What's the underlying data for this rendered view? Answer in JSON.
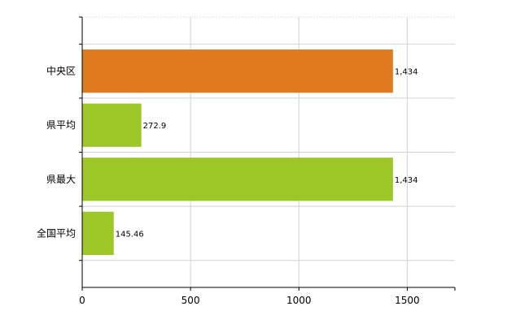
{
  "chart_data": {
    "type": "bar",
    "orientation": "horizontal",
    "categories": [
      "中央区",
      "県平均",
      "県最大",
      "全国平均"
    ],
    "values": [
      1434,
      272.9,
      1434,
      145.46
    ],
    "value_labels": [
      "1,434",
      "272.9",
      "1,434",
      "145.46"
    ],
    "bar_colors": [
      "#e07a1f",
      "#9cc726",
      "#9cc726",
      "#9cc726"
    ],
    "xlim": [
      0,
      1720
    ],
    "x_ticks": [
      0,
      500,
      1000,
      1500
    ],
    "x_tick_labels": [
      "0",
      "500",
      "1000",
      "1500"
    ],
    "grid": true,
    "legend": "none"
  },
  "colors": {
    "highlight": "#e07a1f",
    "default": "#9cc726",
    "grid": "#d3d3d3",
    "axis": "#000000"
  }
}
